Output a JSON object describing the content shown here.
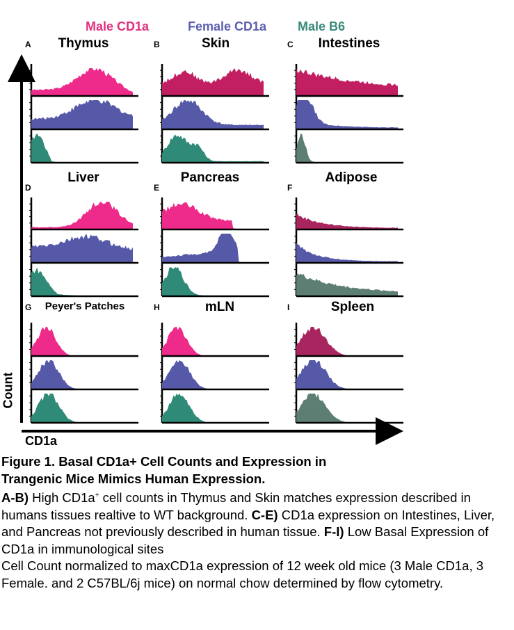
{
  "legend": [
    {
      "label": "Male  CD1a",
      "color": "#e0307e"
    },
    {
      "label": "Female CD1a",
      "color": "#5b5fad"
    },
    {
      "label": "Male B6",
      "color": "#3a8a7a"
    }
  ],
  "panels": [
    {
      "letter": "A",
      "title": "Thymus"
    },
    {
      "letter": "B",
      "title": "Skin"
    },
    {
      "letter": "C",
      "title": "Intestines"
    },
    {
      "letter": "D",
      "title": "Liver"
    },
    {
      "letter": "E",
      "title": "Pancreas"
    },
    {
      "letter": "F",
      "title": "Adipose"
    },
    {
      "letter": "G",
      "title": "Peyer's Patches"
    },
    {
      "letter": "H",
      "title": "mLN"
    },
    {
      "letter": "I",
      "title": "Spleen"
    }
  ],
  "axes": {
    "y_label": "Count",
    "x_label": "CD1a"
  },
  "colors": {
    "pink": "#ee2b8a",
    "crimson": "#c21f62",
    "maroon": "#a8255f",
    "blue": "#5658a8",
    "teal": "#2f8a77",
    "greyteal": "#5d7f73",
    "axis": "#000000"
  },
  "caption": {
    "title_line1": "Figure 1. Basal CD1a+ Cell Counts and Expression in",
    "title_line2": "Trangenic Mice Mimics Human Expression.",
    "ab_label": "A-B)",
    "ab_text_a": " High CD1a",
    "ab_sup": "+",
    "ab_text_b": " cell counts in Thymus and Skin matches expression described in humans tissues realtive to WT background.",
    "ce_label": "C-E)",
    "ce_text": " CD1a expression on Intestines, Liver, and Pancreas not previously described in human tissue.",
    "fi_label": "F-I)",
    "fi_text": " Low Basal Expression of CD1a in immunological sites",
    "note": "Cell Count normalized to maxCD1a expression of 12 week old mice (3 Male CD1a, 3 Female. and 2 C57BL/6j mice) on normal chow determined by flow cytometry."
  }
}
